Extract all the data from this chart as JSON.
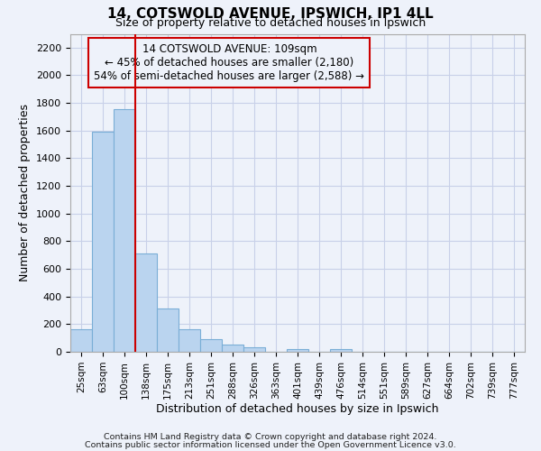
{
  "title": "14, COTSWOLD AVENUE, IPSWICH, IP1 4LL",
  "subtitle": "Size of property relative to detached houses in Ipswich",
  "xlabel": "Distribution of detached houses by size in Ipswich",
  "ylabel": "Number of detached properties",
  "footnote1": "Contains HM Land Registry data © Crown copyright and database right 2024.",
  "footnote2": "Contains public sector information licensed under the Open Government Licence v3.0.",
  "annotation_line1": "14 COTSWOLD AVENUE: 109sqm",
  "annotation_line2": "← 45% of detached houses are smaller (2,180)",
  "annotation_line3": "54% of semi-detached houses are larger (2,588) →",
  "bar_color": "#bad4ef",
  "bar_edge_color": "#7aaed6",
  "highlight_color": "#cc0000",
  "background_color": "#eef2fa",
  "grid_color": "#c8d0e8",
  "bin_labels": [
    "25sqm",
    "63sqm",
    "100sqm",
    "138sqm",
    "175sqm",
    "213sqm",
    "251sqm",
    "288sqm",
    "326sqm",
    "363sqm",
    "401sqm",
    "439sqm",
    "476sqm",
    "514sqm",
    "551sqm",
    "589sqm",
    "627sqm",
    "664sqm",
    "702sqm",
    "739sqm",
    "777sqm"
  ],
  "bar_values": [
    160,
    1590,
    1755,
    710,
    315,
    160,
    90,
    55,
    30,
    0,
    20,
    0,
    20,
    0,
    0,
    0,
    0,
    0,
    0,
    0,
    0
  ],
  "property_bin_index": 2,
  "ylim": [
    0,
    2300
  ],
  "yticks": [
    0,
    200,
    400,
    600,
    800,
    1000,
    1200,
    1400,
    1600,
    1800,
    2000,
    2200
  ]
}
